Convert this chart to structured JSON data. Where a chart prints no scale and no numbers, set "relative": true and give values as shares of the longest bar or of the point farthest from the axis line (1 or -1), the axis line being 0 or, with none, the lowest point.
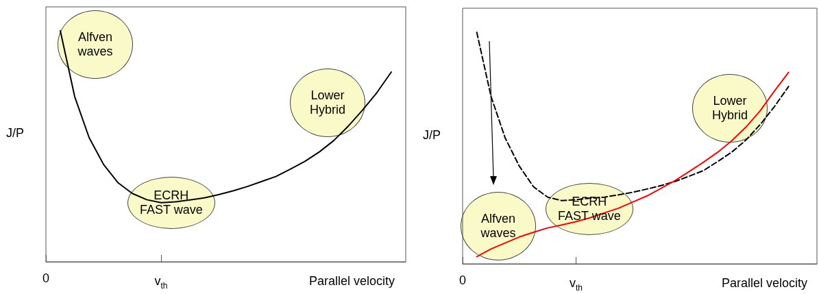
{
  "chart_data": [
    {
      "type": "line",
      "relative": true,
      "marker": "none",
      "xlabel": "Parallel velocity",
      "ylabel": "J/P",
      "categories": [
        "0",
        null,
        null,
        null,
        null,
        null,
        null,
        null,
        "v$_{th}$",
        null,
        null,
        null,
        null,
        null,
        null,
        null,
        null,
        null,
        null,
        null,
        null,
        null,
        null,
        null,
        null,
        null
      ],
      "series": [
        {
          "color": "#000000",
          "values": [
            null,
            1.0,
            0.715,
            0.538,
            0.422,
            0.343,
            0.296,
            0.269,
            0.256,
            0.26,
            0.268,
            0.277,
            0.291,
            0.307,
            0.326,
            0.348,
            0.37,
            0.402,
            0.435,
            0.476,
            0.525,
            0.587,
            0.657,
            0.733,
            0.822,
            null
          ]
        }
      ],
      "annotations": [
        "Alfven\nwaves",
        "ECRH\nFAST wave",
        "Lower\nHybrid"
      ]
    },
    {
      "type": "line",
      "relative": true,
      "marker": "none",
      "xlabel": "Parallel velocity",
      "ylabel": "J/P",
      "categories": [
        "0",
        null,
        null,
        null,
        null,
        null,
        null,
        null,
        "v$_{th}$",
        null,
        null,
        null,
        null,
        null,
        null,
        null,
        null,
        null,
        null,
        null,
        null,
        null,
        null,
        null,
        null,
        null
      ],
      "series": [
        {
          "color": "#000000",
          "line_style": "dashed",
          "values": [
            null,
            1.0,
            0.724,
            0.544,
            0.422,
            0.333,
            0.288,
            0.273,
            0.277,
            0.284,
            0.288,
            0.298,
            0.309,
            0.323,
            0.338,
            0.356,
            0.379,
            0.403,
            0.442,
            0.483,
            0.535,
            0.602,
            0.679,
            0.766,
            null,
            null
          ]
        },
        {
          "color": "#ff0000",
          "line_style": "solid",
          "values": [
            null,
            0.031,
            0.064,
            0.09,
            0.116,
            0.136,
            0.155,
            0.168,
            0.182,
            0.199,
            0.22,
            0.24,
            0.267,
            0.293,
            0.326,
            0.36,
            0.399,
            0.439,
            0.482,
            0.532,
            0.591,
            0.661,
            0.746,
            0.827,
            null,
            null
          ]
        }
      ],
      "annotations": [
        "Alfven\nwaves",
        "ECRH\nFAST wave",
        "Lower\nHybrid"
      ]
    }
  ]
}
